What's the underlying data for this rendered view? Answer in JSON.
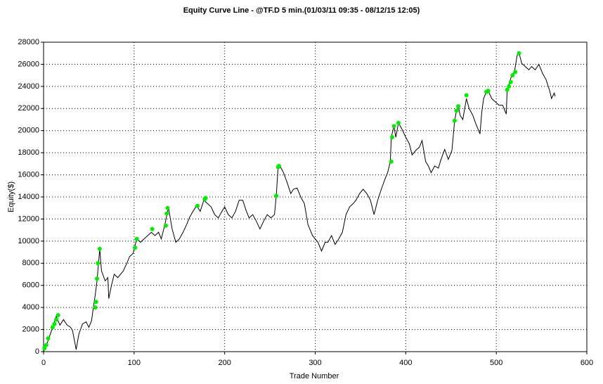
{
  "chart_data": {
    "type": "line",
    "title": "Equity Curve Line - @TF.D 5 min.(01/03/11 09:35 - 08/12/15 12:05)",
    "xlabel": "Trade Number",
    "ylabel": "Equity($)",
    "xlim": [
      0,
      600
    ],
    "ylim": [
      0,
      28000
    ],
    "xticks": [
      0,
      100,
      200,
      300,
      400,
      500,
      600
    ],
    "yticks": [
      0,
      2000,
      4000,
      6000,
      8000,
      10000,
      12000,
      14000,
      16000,
      18000,
      20000,
      22000,
      24000,
      26000,
      28000
    ],
    "grid": true,
    "series": [
      {
        "color": "#000000",
        "line": true,
        "x": [
          0,
          5,
          10,
          14,
          18,
          22,
          26,
          30,
          32,
          36,
          39,
          43,
          47,
          50,
          53,
          55,
          57,
          59,
          61,
          62,
          64,
          68,
          71,
          72,
          75,
          78,
          82,
          88,
          92,
          95,
          99,
          101,
          103,
          107,
          111,
          115,
          119,
          123,
          127,
          130,
          134,
          137,
          138,
          142,
          146,
          150,
          154,
          158,
          161,
          165,
          169,
          173,
          177,
          181,
          185,
          189,
          193,
          197,
          200,
          204,
          208,
          212,
          216,
          220,
          224,
          227,
          231,
          235,
          239,
          243,
          247,
          251,
          255,
          257,
          259,
          261,
          265,
          269,
          273,
          276,
          280,
          284,
          288,
          292,
          297,
          303,
          307,
          311,
          314,
          318,
          322,
          326,
          330,
          334,
          338,
          342,
          345,
          349,
          353,
          357,
          361,
          365,
          369,
          373,
          377,
          380,
          383,
          384,
          387,
          389,
          392,
          396,
          400,
          404,
          407,
          411,
          415,
          418,
          422,
          425,
          428,
          432,
          436,
          439,
          443,
          447,
          451,
          454,
          456,
          458,
          460,
          463,
          467,
          470,
          474,
          477,
          482,
          484,
          486,
          489,
          491,
          495,
          499,
          503,
          507,
          511,
          512,
          514,
          517,
          520,
          523,
          525,
          528,
          532,
          536,
          539,
          543,
          547,
          551,
          555,
          559,
          561,
          564,
          565
        ],
        "values": [
          0,
          1000,
          2200,
          3200,
          2400,
          2900,
          2400,
          2200,
          1900,
          200,
          1600,
          2500,
          2700,
          2200,
          2800,
          4000,
          5100,
          6400,
          8300,
          9300,
          7300,
          6400,
          6700,
          4800,
          6000,
          7000,
          6700,
          7300,
          8000,
          8600,
          8900,
          9600,
          10200,
          9900,
          10200,
          10500,
          10800,
          10500,
          10800,
          10200,
          11500,
          12700,
          13000,
          11100,
          9900,
          10200,
          10800,
          11500,
          12100,
          12700,
          13200,
          12700,
          13700,
          13400,
          13100,
          12400,
          12100,
          12700,
          13100,
          12400,
          12100,
          12700,
          13700,
          13700,
          12700,
          12100,
          12400,
          11800,
          11100,
          11800,
          12400,
          12100,
          12400,
          14100,
          16700,
          16800,
          16200,
          15300,
          14300,
          14700,
          14800,
          14000,
          13400,
          11500,
          10500,
          9900,
          9100,
          9900,
          9900,
          10500,
          9700,
          10200,
          10800,
          12400,
          13100,
          13400,
          13700,
          14300,
          14700,
          14300,
          13700,
          12400,
          13700,
          14700,
          15600,
          16200,
          17200,
          19400,
          20400,
          19400,
          20700,
          20100,
          19400,
          18800,
          17800,
          18200,
          18500,
          19100,
          17200,
          16800,
          16200,
          16800,
          16600,
          17400,
          18300,
          17400,
          18200,
          20900,
          21800,
          22200,
          21400,
          21000,
          22900,
          22000,
          21400,
          20700,
          19700,
          21700,
          22900,
          23500,
          23600,
          22900,
          22600,
          22300,
          22300,
          21500,
          23700,
          24200,
          25000,
          25300,
          26800,
          27100,
          26100,
          25800,
          25500,
          25800,
          25500,
          26000,
          25200,
          24600,
          23600,
          22900,
          23400,
          23100
        ]
      },
      {
        "color": "#00ee00",
        "line": false,
        "x": [
          1,
          3,
          5,
          10,
          12,
          14,
          16,
          57,
          58,
          59,
          60,
          62,
          101,
          103,
          120,
          135,
          136,
          137,
          170,
          178,
          179,
          257,
          259,
          260,
          384,
          385,
          387,
          392,
          454,
          456,
          458,
          467,
          489,
          491,
          512,
          514,
          516,
          518,
          521,
          525
        ],
        "values": [
          300,
          600,
          1200,
          2200,
          2500,
          2900,
          3300,
          4000,
          4500,
          6600,
          8000,
          9300,
          9400,
          10200,
          11100,
          11400,
          12500,
          13000,
          13200,
          13800,
          13900,
          14100,
          16700,
          16800,
          17200,
          19400,
          20400,
          20700,
          20900,
          21800,
          22200,
          23200,
          23500,
          23600,
          23700,
          24000,
          24400,
          25000,
          25300,
          27000
        ]
      }
    ]
  }
}
